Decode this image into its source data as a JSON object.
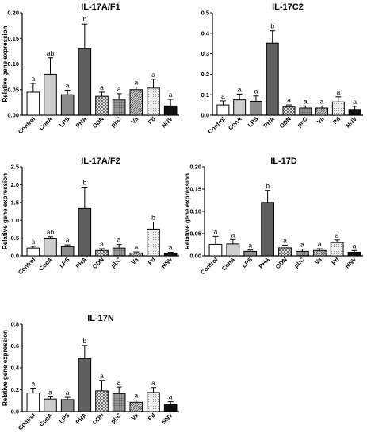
{
  "chart_data": [
    {
      "type": "bar",
      "title": "IL-17A/F1",
      "ylabel": "Relative gene expression",
      "xlabel": "",
      "categories": [
        "Control",
        "ConA",
        "LPS",
        "PHA",
        "ODN",
        "pI:C",
        "Va",
        "Pd",
        "NNV"
      ],
      "values": [
        0.045,
        0.08,
        0.04,
        0.13,
        0.037,
        0.031,
        0.05,
        0.053,
        0.018
      ],
      "errors": [
        0.017,
        0.032,
        0.009,
        0.048,
        0.008,
        0.011,
        0.005,
        0.017,
        0.013
      ],
      "significance": [
        "a",
        "ab",
        "a",
        "b",
        "a",
        "a",
        "a",
        "a",
        "a"
      ],
      "ylim": [
        0,
        0.2
      ],
      "yticks": [
        "0.00",
        "0.05",
        "0.10",
        "0.15",
        "0.20"
      ],
      "ytick_values": [
        0,
        0.05,
        0.1,
        0.15,
        0.2
      ]
    },
    {
      "type": "bar",
      "title": "IL-17C2",
      "ylabel": "",
      "xlabel": "",
      "categories": [
        "Control",
        "ConA",
        "LPS",
        "PHA",
        "ODN",
        "pI:C",
        "Va",
        "Pd",
        "NNV"
      ],
      "values": [
        0.05,
        0.075,
        0.068,
        0.352,
        0.04,
        0.035,
        0.035,
        0.065,
        0.028
      ],
      "errors": [
        0.02,
        0.028,
        0.026,
        0.06,
        0.01,
        0.01,
        0.01,
        0.025,
        0.015
      ],
      "significance": [
        "a",
        "a",
        "a",
        "b",
        "a",
        "a",
        "a",
        "a",
        "a"
      ],
      "ylim": [
        0,
        0.5
      ],
      "yticks": [
        "0.0",
        "0.1",
        "0.2",
        "0.3",
        "0.4",
        "0.5"
      ],
      "ytick_values": [
        0,
        0.1,
        0.2,
        0.3,
        0.4,
        0.5
      ]
    },
    {
      "type": "bar",
      "title": "IL-17A/F2",
      "ylabel": "Relative gene expression",
      "xlabel": "",
      "categories": [
        "Control",
        "ConA",
        "LPS",
        "PHA",
        "ODN",
        "pI:C",
        "Va",
        "Pd",
        "NNV"
      ],
      "values": [
        0.22,
        0.48,
        0.26,
        1.33,
        0.15,
        0.22,
        0.08,
        0.75,
        0.07
      ],
      "errors": [
        0.05,
        0.06,
        0.05,
        0.6,
        0.05,
        0.1,
        0.03,
        0.2,
        0.03
      ],
      "significance": [
        "a",
        "ab",
        "a",
        "b",
        "a",
        "a",
        "a",
        "b",
        "a"
      ],
      "ylim": [
        0,
        2.5
      ],
      "yticks": [
        "0.0",
        "0.5",
        "1.0",
        "1.5",
        "2.0",
        "2.5"
      ],
      "ytick_values": [
        0,
        0.5,
        1,
        1.5,
        2,
        2.5
      ]
    },
    {
      "type": "bar",
      "title": "IL-17D",
      "ylabel": "Relative gene expression",
      "xlabel": "",
      "categories": [
        "Control",
        "ConA",
        "LPS",
        "PHA",
        "ODN",
        "pI:C",
        "Va",
        "Pd",
        "NNV"
      ],
      "values": [
        0.026,
        0.027,
        0.01,
        0.12,
        0.018,
        0.01,
        0.012,
        0.03,
        0.008
      ],
      "errors": [
        0.018,
        0.01,
        0.003,
        0.027,
        0.006,
        0.005,
        0.004,
        0.006,
        0.004
      ],
      "significance": [
        "a",
        "a",
        "a",
        "b",
        "a",
        "a",
        "a",
        "a",
        "a"
      ],
      "ylim": [
        0,
        0.2
      ],
      "yticks": [
        "0.00",
        "0.05",
        "0.10",
        "0.15",
        "0.20"
      ],
      "ytick_values": [
        0,
        0.05,
        0.1,
        0.15,
        0.2
      ]
    },
    {
      "type": "bar",
      "title": "IL-17N",
      "ylabel": "Relative gene expression",
      "xlabel": "",
      "categories": [
        "Control",
        "ConA",
        "LPS",
        "PHA",
        "ODN",
        "pI:C",
        "Va",
        "Pd",
        "NNV"
      ],
      "values": [
        0.17,
        0.115,
        0.11,
        0.485,
        0.19,
        0.165,
        0.085,
        0.175,
        0.065
      ],
      "errors": [
        0.045,
        0.02,
        0.02,
        0.12,
        0.095,
        0.06,
        0.02,
        0.045,
        0.025
      ],
      "significance": [
        "a",
        "a",
        "a",
        "b",
        "a",
        "a",
        "a",
        "a",
        "a"
      ],
      "ylim": [
        0,
        0.8
      ],
      "yticks": [
        "0.0",
        "0.2",
        "0.4",
        "0.6",
        "0.8"
      ],
      "ytick_values": [
        0,
        0.2,
        0.4,
        0.6,
        0.8
      ]
    }
  ],
  "colors": {
    "axis": "#000000",
    "Control": "#ffffff",
    "ConA": "#cfcfcf",
    "LPS": "#8c8c8c",
    "PHA": "#5f5f5f",
    "ODN": "#6a6a6a",
    "pI:C": "#8a8a8a",
    "Va": "#b0b0b0",
    "Pd": "#d8d8d8",
    "NNV": "#111111"
  },
  "patterns": {
    "Control": "none",
    "ConA": "none",
    "LPS": "none",
    "PHA": "none",
    "ODN": "checker",
    "pI:C": "grid",
    "Va": "diagonal",
    "Pd": "dots",
    "NNV": "none"
  }
}
